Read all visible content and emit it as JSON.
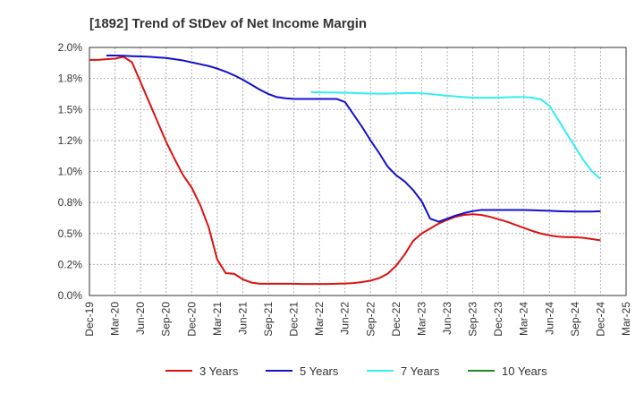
{
  "chart_data": {
    "type": "line",
    "title": "[1892]  Trend of StDev of Net Income Margin",
    "xlabel": "",
    "ylabel": "",
    "ylim": [
      0,
      2.0
    ],
    "y_ticks": [
      "0.0%",
      "0.2%",
      "0.5%",
      "0.8%",
      "1.0%",
      "1.2%",
      "1.5%",
      "1.8%",
      "2.0%"
    ],
    "x_ticks": [
      "Dec-19",
      "Mar-20",
      "Jun-20",
      "Sep-20",
      "Dec-20",
      "Mar-21",
      "Jun-21",
      "Sep-21",
      "Dec-21",
      "Mar-22",
      "Jun-22",
      "Sep-22",
      "Dec-22",
      "Mar-23",
      "Jun-23",
      "Sep-23",
      "Dec-23",
      "Mar-24",
      "Jun-24",
      "Sep-24",
      "Dec-24",
      "Mar-25"
    ],
    "grid": true,
    "legend_position": "bottom",
    "series": [
      {
        "name": "3 Years",
        "color": "#dd1111",
        "x": [
          "2019-12",
          "2020-01",
          "2020-02",
          "2020-03",
          "2020-04",
          "2020-05",
          "2020-06",
          "2020-07",
          "2020-08",
          "2020-09",
          "2020-10",
          "2020-11",
          "2020-12",
          "2021-01",
          "2021-02",
          "2021-03",
          "2021-04",
          "2021-05",
          "2021-06",
          "2021-07",
          "2021-08",
          "2021-09",
          "2021-10",
          "2021-11",
          "2021-12",
          "2022-01",
          "2022-02",
          "2022-03",
          "2022-04",
          "2022-05",
          "2022-06",
          "2022-07",
          "2022-08",
          "2022-09",
          "2022-10",
          "2022-11",
          "2022-12",
          "2023-01",
          "2023-02",
          "2023-03",
          "2023-04",
          "2023-05",
          "2023-06",
          "2023-07",
          "2023-08",
          "2023-09",
          "2023-10",
          "2023-11",
          "2023-12",
          "2024-01",
          "2024-02",
          "2024-03",
          "2024-04",
          "2024-05",
          "2024-06",
          "2024-07",
          "2024-08",
          "2024-09",
          "2024-10",
          "2024-11",
          "2024-12"
        ],
        "values": [
          1.9,
          1.9,
          1.905,
          1.91,
          1.925,
          1.88,
          1.72,
          1.56,
          1.4,
          1.24,
          1.1,
          0.97,
          0.87,
          0.73,
          0.55,
          0.29,
          0.18,
          0.175,
          0.13,
          0.105,
          0.095,
          0.095,
          0.095,
          0.095,
          0.095,
          0.093,
          0.093,
          0.093,
          0.093,
          0.095,
          0.097,
          0.1,
          0.108,
          0.12,
          0.14,
          0.175,
          0.24,
          0.33,
          0.44,
          0.5,
          0.54,
          0.58,
          0.61,
          0.635,
          0.65,
          0.655,
          0.65,
          0.635,
          0.615,
          0.595,
          0.57,
          0.545,
          0.52,
          0.5,
          0.485,
          0.475,
          0.47,
          0.47,
          0.465,
          0.455,
          0.445
        ]
      },
      {
        "name": "5 Years",
        "color": "#1111cc",
        "x": [
          "2020-02",
          "2020-03",
          "2020-04",
          "2020-05",
          "2020-06",
          "2020-07",
          "2020-08",
          "2020-09",
          "2020-10",
          "2020-11",
          "2020-12",
          "2021-01",
          "2021-02",
          "2021-03",
          "2021-04",
          "2021-05",
          "2021-06",
          "2021-07",
          "2021-08",
          "2021-09",
          "2021-10",
          "2021-11",
          "2021-12",
          "2022-01",
          "2022-02",
          "2022-03",
          "2022-04",
          "2022-05",
          "2022-06",
          "2022-07",
          "2022-08",
          "2022-09",
          "2022-10",
          "2022-11",
          "2022-12",
          "2023-01",
          "2023-02",
          "2023-03",
          "2023-04",
          "2023-05",
          "2023-06",
          "2023-07",
          "2023-08",
          "2023-09",
          "2023-10",
          "2023-11",
          "2023-12",
          "2024-01",
          "2024-02",
          "2024-03",
          "2024-04",
          "2024-05",
          "2024-06",
          "2024-07",
          "2024-08",
          "2024-09",
          "2024-10",
          "2024-11",
          "2024-12"
        ],
        "values": [
          1.935,
          1.935,
          1.933,
          1.93,
          1.928,
          1.925,
          1.92,
          1.915,
          1.905,
          1.895,
          1.88,
          1.865,
          1.85,
          1.83,
          1.805,
          1.775,
          1.74,
          1.7,
          1.66,
          1.625,
          1.6,
          1.59,
          1.585,
          1.585,
          1.585,
          1.585,
          1.585,
          1.585,
          1.56,
          1.46,
          1.36,
          1.25,
          1.15,
          1.04,
          0.97,
          0.92,
          0.85,
          0.76,
          0.62,
          0.595,
          0.62,
          0.645,
          0.665,
          0.68,
          0.69,
          0.69,
          0.69,
          0.69,
          0.69,
          0.69,
          0.688,
          0.685,
          0.683,
          0.68,
          0.678,
          0.677,
          0.677,
          0.677,
          0.68
        ]
      },
      {
        "name": "7 Years",
        "color": "#33eeee",
        "x": [
          "2022-02",
          "2022-03",
          "2022-04",
          "2022-05",
          "2022-06",
          "2022-07",
          "2022-08",
          "2022-09",
          "2022-10",
          "2022-11",
          "2022-12",
          "2023-01",
          "2023-02",
          "2023-03",
          "2023-04",
          "2023-05",
          "2023-06",
          "2023-07",
          "2023-08",
          "2023-09",
          "2023-10",
          "2023-11",
          "2023-12",
          "2024-01",
          "2024-02",
          "2024-03",
          "2024-04",
          "2024-05",
          "2024-06",
          "2024-07",
          "2024-08",
          "2024-09",
          "2024-10",
          "2024-11",
          "2024-12"
        ],
        "values": [
          1.64,
          1.638,
          1.637,
          1.636,
          1.635,
          1.633,
          1.63,
          1.628,
          1.627,
          1.627,
          1.63,
          1.632,
          1.632,
          1.63,
          1.625,
          1.618,
          1.61,
          1.605,
          1.6,
          1.595,
          1.595,
          1.595,
          1.595,
          1.598,
          1.6,
          1.6,
          1.595,
          1.58,
          1.53,
          1.42,
          1.31,
          1.2,
          1.09,
          1.0,
          0.94
        ]
      },
      {
        "name": "10 Years",
        "color": "#228822",
        "x": [],
        "values": []
      }
    ]
  }
}
